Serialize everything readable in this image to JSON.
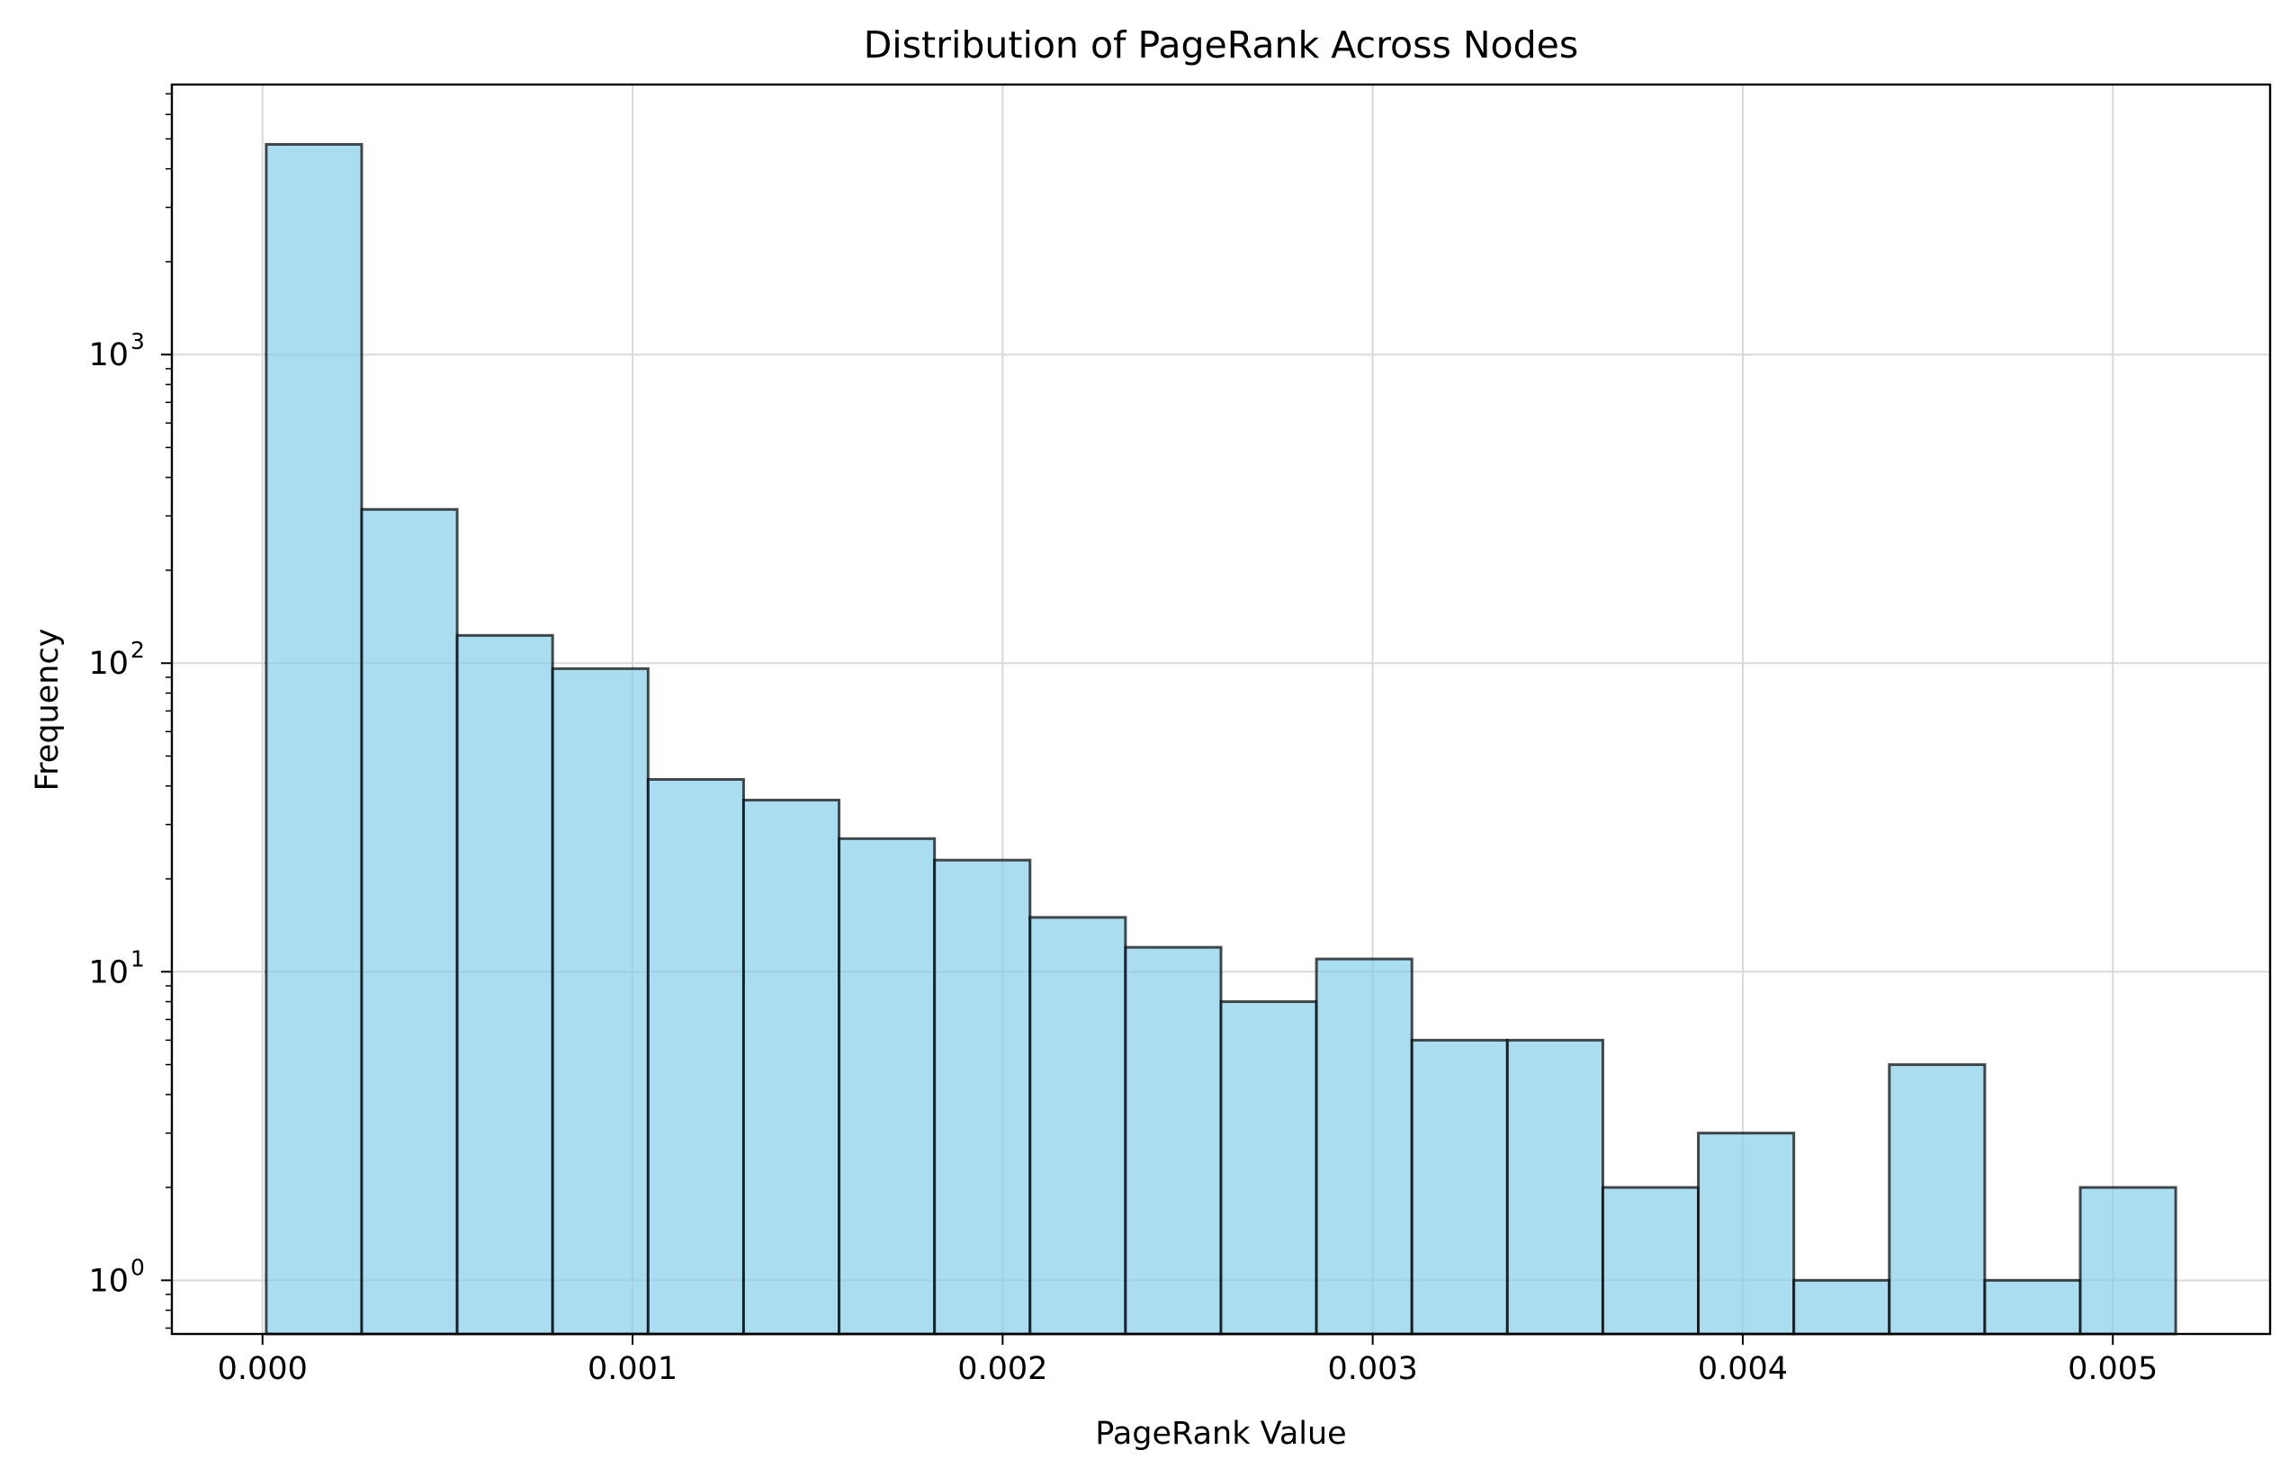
{
  "chart_data": {
    "type": "bar",
    "title": "Distribution of PageRank Across Nodes",
    "xlabel": "PageRank Value",
    "ylabel": "Frequency",
    "yscale": "log",
    "xlim": [
      -0.000245,
      0.005425
    ],
    "ylim": [
      0.67,
      7500
    ],
    "grid": true,
    "x_ticks": [
      {
        "value": 0.0,
        "label": "0.000"
      },
      {
        "value": 0.001,
        "label": "0.001"
      },
      {
        "value": 0.002,
        "label": "0.002"
      },
      {
        "value": 0.003,
        "label": "0.003"
      },
      {
        "value": 0.004,
        "label": "0.004"
      },
      {
        "value": 0.005,
        "label": "0.005"
      }
    ],
    "y_ticks": [
      {
        "value": 1,
        "base": "10",
        "exp": "0"
      },
      {
        "value": 10,
        "base": "10",
        "exp": "1"
      },
      {
        "value": 100,
        "base": "10",
        "exp": "2"
      },
      {
        "value": 1000,
        "base": "10",
        "exp": "3"
      }
    ],
    "bins": [
      {
        "x0": 1e-05,
        "x1": 0.000268,
        "count": 4800
      },
      {
        "x0": 0.000268,
        "x1": 0.000526,
        "count": 315
      },
      {
        "x0": 0.000526,
        "x1": 0.000784,
        "count": 123
      },
      {
        "x0": 0.000784,
        "x1": 0.001042,
        "count": 96
      },
      {
        "x0": 0.001042,
        "x1": 0.0013,
        "count": 42
      },
      {
        "x0": 0.0013,
        "x1": 0.001558,
        "count": 36
      },
      {
        "x0": 0.001558,
        "x1": 0.001816,
        "count": 27
      },
      {
        "x0": 0.001816,
        "x1": 0.002074,
        "count": 23
      },
      {
        "x0": 0.002074,
        "x1": 0.002332,
        "count": 15
      },
      {
        "x0": 0.002332,
        "x1": 0.00259,
        "count": 12
      },
      {
        "x0": 0.00259,
        "x1": 0.002848,
        "count": 8
      },
      {
        "x0": 0.002848,
        "x1": 0.003106,
        "count": 11
      },
      {
        "x0": 0.003106,
        "x1": 0.003364,
        "count": 6
      },
      {
        "x0": 0.003364,
        "x1": 0.003622,
        "count": 6
      },
      {
        "x0": 0.003622,
        "x1": 0.00388,
        "count": 2
      },
      {
        "x0": 0.00388,
        "x1": 0.004138,
        "count": 3
      },
      {
        "x0": 0.004138,
        "x1": 0.004396,
        "count": 1
      },
      {
        "x0": 0.004396,
        "x1": 0.004654,
        "count": 5
      },
      {
        "x0": 0.004654,
        "x1": 0.004912,
        "count": 1
      },
      {
        "x0": 0.004912,
        "x1": 0.00517,
        "count": 2
      }
    ],
    "colors": {
      "bar_fill": "#87CEEB",
      "bar_edge": "#000000",
      "grid": "#d9d9d9",
      "axis": "#000000"
    }
  }
}
